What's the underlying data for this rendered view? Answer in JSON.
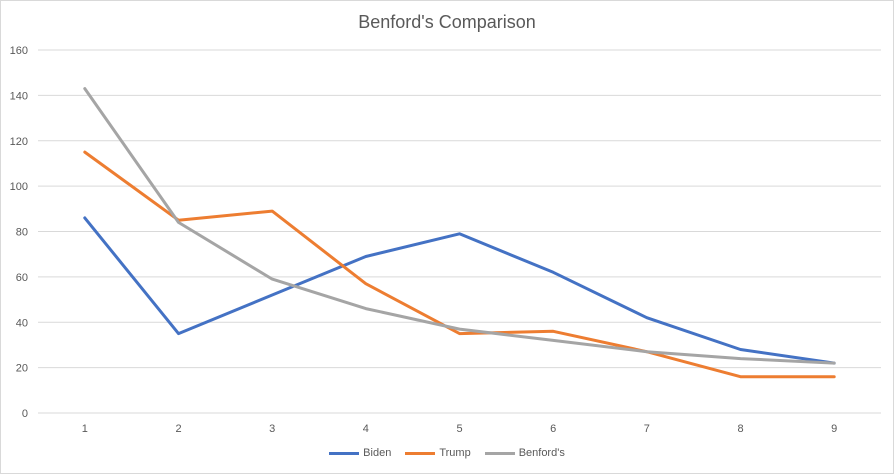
{
  "chart_data": {
    "type": "line",
    "title": "Benford's Comparison",
    "xlabel": "",
    "ylabel": "",
    "categories": [
      "1",
      "2",
      "3",
      "4",
      "5",
      "6",
      "7",
      "8",
      "9"
    ],
    "ylim": [
      0,
      160
    ],
    "yticks": [
      "0",
      "20",
      "40",
      "60",
      "80",
      "100",
      "120",
      "140",
      "160"
    ],
    "grid": true,
    "legend_position": "bottom",
    "series": [
      {
        "name": "Biden",
        "color": "#4472C4",
        "values": [
          86,
          35,
          52,
          69,
          79,
          62,
          42,
          28,
          22
        ]
      },
      {
        "name": "Trump",
        "color": "#ED7D31",
        "values": [
          115,
          85,
          89,
          57,
          35,
          36,
          27,
          16,
          16
        ]
      },
      {
        "name": "Benford's",
        "color": "#A5A5A5",
        "values": [
          143,
          84,
          59,
          46,
          37,
          32,
          27,
          24,
          22
        ]
      }
    ]
  }
}
